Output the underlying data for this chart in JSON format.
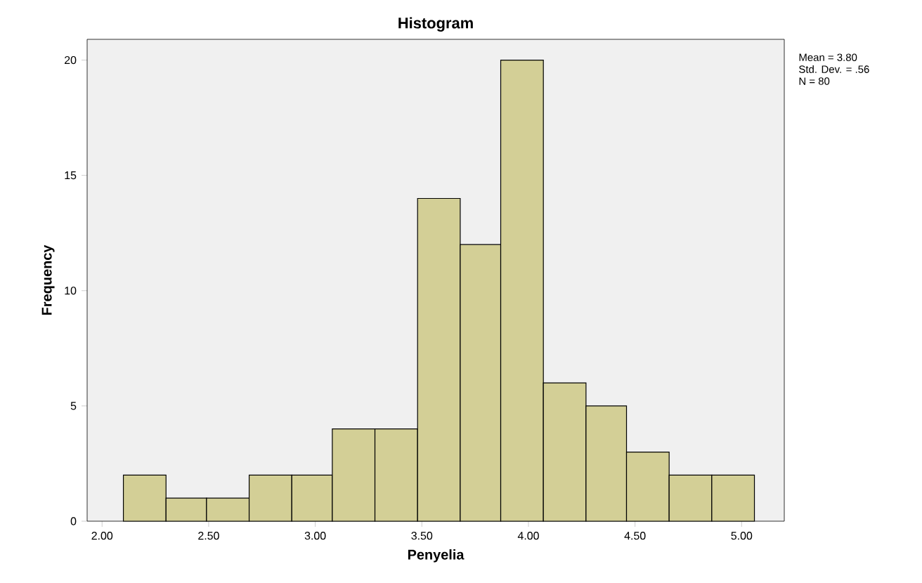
{
  "chart_data": {
    "type": "histogram",
    "title": "Histogram",
    "xlabel": "Penyelia",
    "ylabel": "Frequency",
    "annotations": [
      "Mean = 3.80",
      "Std. Dev. = .56",
      "N = 80"
    ],
    "bins": [
      2.1,
      2.3,
      2.49,
      2.69,
      2.89,
      3.08,
      3.28,
      3.48,
      3.68,
      3.87,
      4.07,
      4.27,
      4.46,
      4.66,
      4.86,
      5.06
    ],
    "values": [
      2,
      1,
      1,
      2,
      2,
      4,
      4,
      14,
      12,
      20,
      6,
      5,
      3,
      2,
      2
    ],
    "color": "#d3cf96",
    "xlim": [
      1.93,
      5.2
    ],
    "ylim": [
      0,
      20.9
    ],
    "xticks": [
      {
        "value": 2,
        "label": "2.00"
      },
      {
        "value": 2.5,
        "label": "2.50"
      },
      {
        "value": 3,
        "label": "3.00"
      },
      {
        "value": 3.5,
        "label": "3.50"
      },
      {
        "value": 4,
        "label": "4.00"
      },
      {
        "value": 4.5,
        "label": "4.50"
      },
      {
        "value": 5,
        "label": "5.00"
      }
    ],
    "yticks": [
      0,
      5,
      10,
      15,
      20
    ],
    "grid": false
  }
}
